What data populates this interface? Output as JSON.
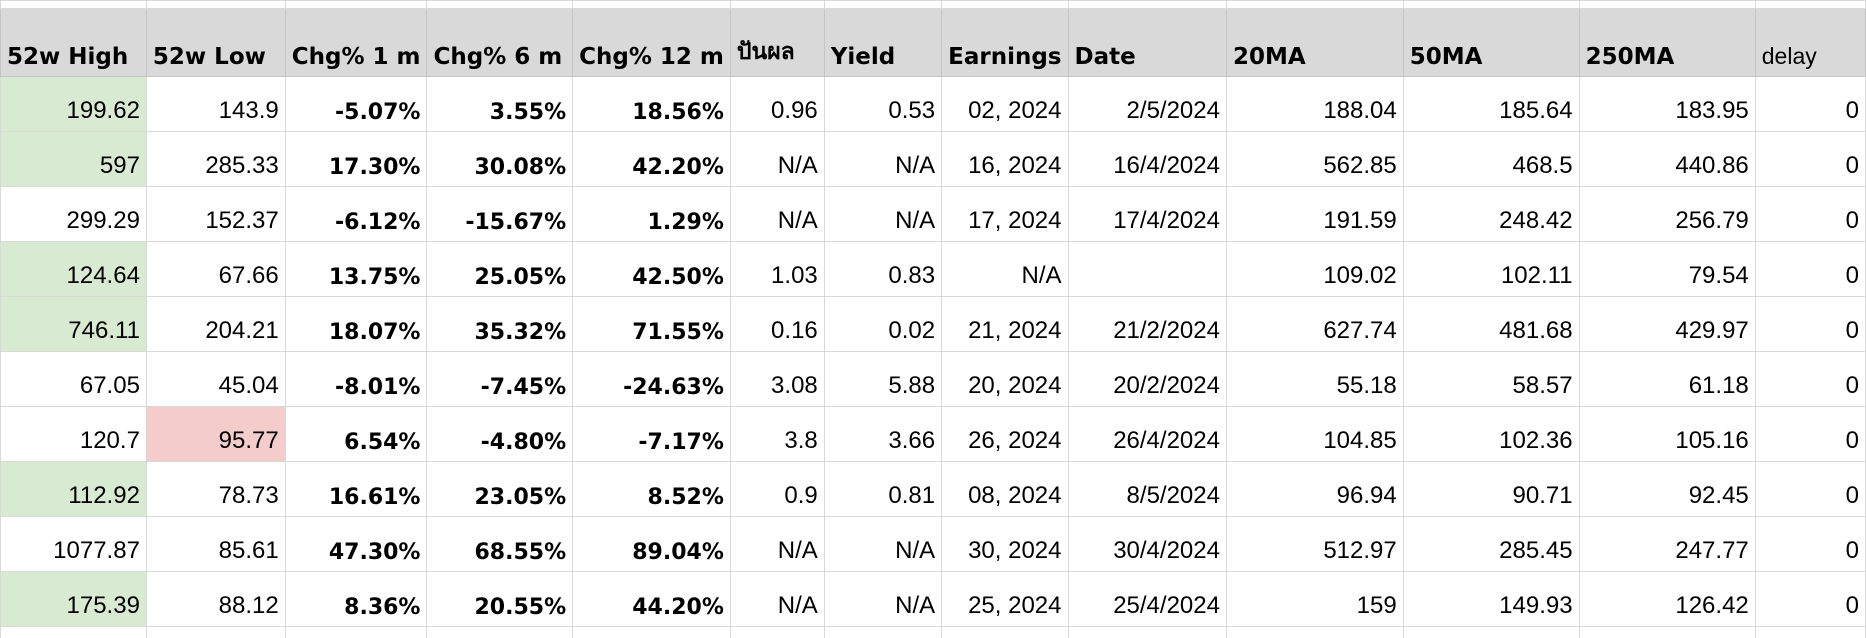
{
  "headers": [
    "52w High",
    "52w Low",
    "Chg% 1 m",
    "Chg% 6 m",
    "Chg% 12 m",
    "ปันผล",
    "Yield",
    "Earnings",
    "Date",
    "20MA",
    "50MA",
    "250MA",
    "delay"
  ],
  "colors": {
    "header_bg": "#d9d9d9",
    "grid_line": "#d9d9d9",
    "positive": "#34a853",
    "negative": "#e53935",
    "high_highlight": "#d9ead3",
    "low_highlight": "#f4cccc"
  },
  "rows": [
    {
      "high": "199.62",
      "low": "143.9",
      "chg1m": "-5.07%",
      "chg6m": "3.55%",
      "chg12m": "18.56%",
      "dividend": "0.96",
      "yield": "0.53",
      "earnings": "02, 2024",
      "date": "2/5/2024",
      "ma20": "188.04",
      "ma50": "185.64",
      "ma250": "183.95",
      "delay": "0",
      "high_flag": "green",
      "low_flag": ""
    },
    {
      "high": "597",
      "low": "285.33",
      "chg1m": "17.30%",
      "chg6m": "30.08%",
      "chg12m": "42.20%",
      "dividend": "N/A",
      "yield": "N/A",
      "earnings": "16, 2024",
      "date": "16/4/2024",
      "ma20": "562.85",
      "ma50": "468.5",
      "ma250": "440.86",
      "delay": "0",
      "high_flag": "green",
      "low_flag": ""
    },
    {
      "high": "299.29",
      "low": "152.37",
      "chg1m": "-6.12%",
      "chg6m": "-15.67%",
      "chg12m": "1.29%",
      "dividend": "N/A",
      "yield": "N/A",
      "earnings": "17, 2024",
      "date": "17/4/2024",
      "ma20": "191.59",
      "ma50": "248.42",
      "ma250": "256.79",
      "delay": "0",
      "high_flag": "",
      "low_flag": ""
    },
    {
      "high": "124.64",
      "low": "67.66",
      "chg1m": "13.75%",
      "chg6m": "25.05%",
      "chg12m": "42.50%",
      "dividend": "1.03",
      "yield": "0.83",
      "earnings": "N/A",
      "date": "",
      "ma20": "109.02",
      "ma50": "102.11",
      "ma250": "79.54",
      "delay": "0",
      "high_flag": "green",
      "low_flag": ""
    },
    {
      "high": "746.11",
      "low": "204.21",
      "chg1m": "18.07%",
      "chg6m": "35.32%",
      "chg12m": "71.55%",
      "dividend": "0.16",
      "yield": "0.02",
      "earnings": "21, 2024",
      "date": "21/2/2024",
      "ma20": "627.74",
      "ma50": "481.68",
      "ma250": "429.97",
      "delay": "0",
      "high_flag": "green",
      "low_flag": ""
    },
    {
      "high": "67.05",
      "low": "45.04",
      "chg1m": "-8.01%",
      "chg6m": "-7.45%",
      "chg12m": "-24.63%",
      "dividend": "3.08",
      "yield": "5.88",
      "earnings": "20, 2024",
      "date": "20/2/2024",
      "ma20": "55.18",
      "ma50": "58.57",
      "ma250": "61.18",
      "delay": "0",
      "high_flag": "",
      "low_flag": ""
    },
    {
      "high": "120.7",
      "low": "95.77",
      "chg1m": "6.54%",
      "chg6m": "-4.80%",
      "chg12m": "-7.17%",
      "dividend": "3.8",
      "yield": "3.66",
      "earnings": "26, 2024",
      "date": "26/4/2024",
      "ma20": "104.85",
      "ma50": "102.36",
      "ma250": "105.16",
      "delay": "0",
      "high_flag": "",
      "low_flag": "red"
    },
    {
      "high": "112.92",
      "low": "78.73",
      "chg1m": "16.61%",
      "chg6m": "23.05%",
      "chg12m": "8.52%",
      "dividend": "0.9",
      "yield": "0.81",
      "earnings": "08, 2024",
      "date": "8/5/2024",
      "ma20": "96.94",
      "ma50": "90.71",
      "ma250": "92.45",
      "delay": "0",
      "high_flag": "green",
      "low_flag": ""
    },
    {
      "high": "1077.87",
      "low": "85.61",
      "chg1m": "47.30%",
      "chg6m": "68.55%",
      "chg12m": "89.04%",
      "dividend": "N/A",
      "yield": "N/A",
      "earnings": "30, 2024",
      "date": "30/4/2024",
      "ma20": "512.97",
      "ma50": "285.45",
      "ma250": "247.77",
      "delay": "0",
      "high_flag": "",
      "low_flag": ""
    },
    {
      "high": "175.39",
      "low": "88.12",
      "chg1m": "8.36%",
      "chg6m": "20.55%",
      "chg12m": "44.20%",
      "dividend": "N/A",
      "yield": "N/A",
      "earnings": "25, 2024",
      "date": "25/4/2024",
      "ma20": "159",
      "ma50": "149.93",
      "ma250": "126.42",
      "delay": "0",
      "high_flag": "green",
      "low_flag": ""
    }
  ]
}
